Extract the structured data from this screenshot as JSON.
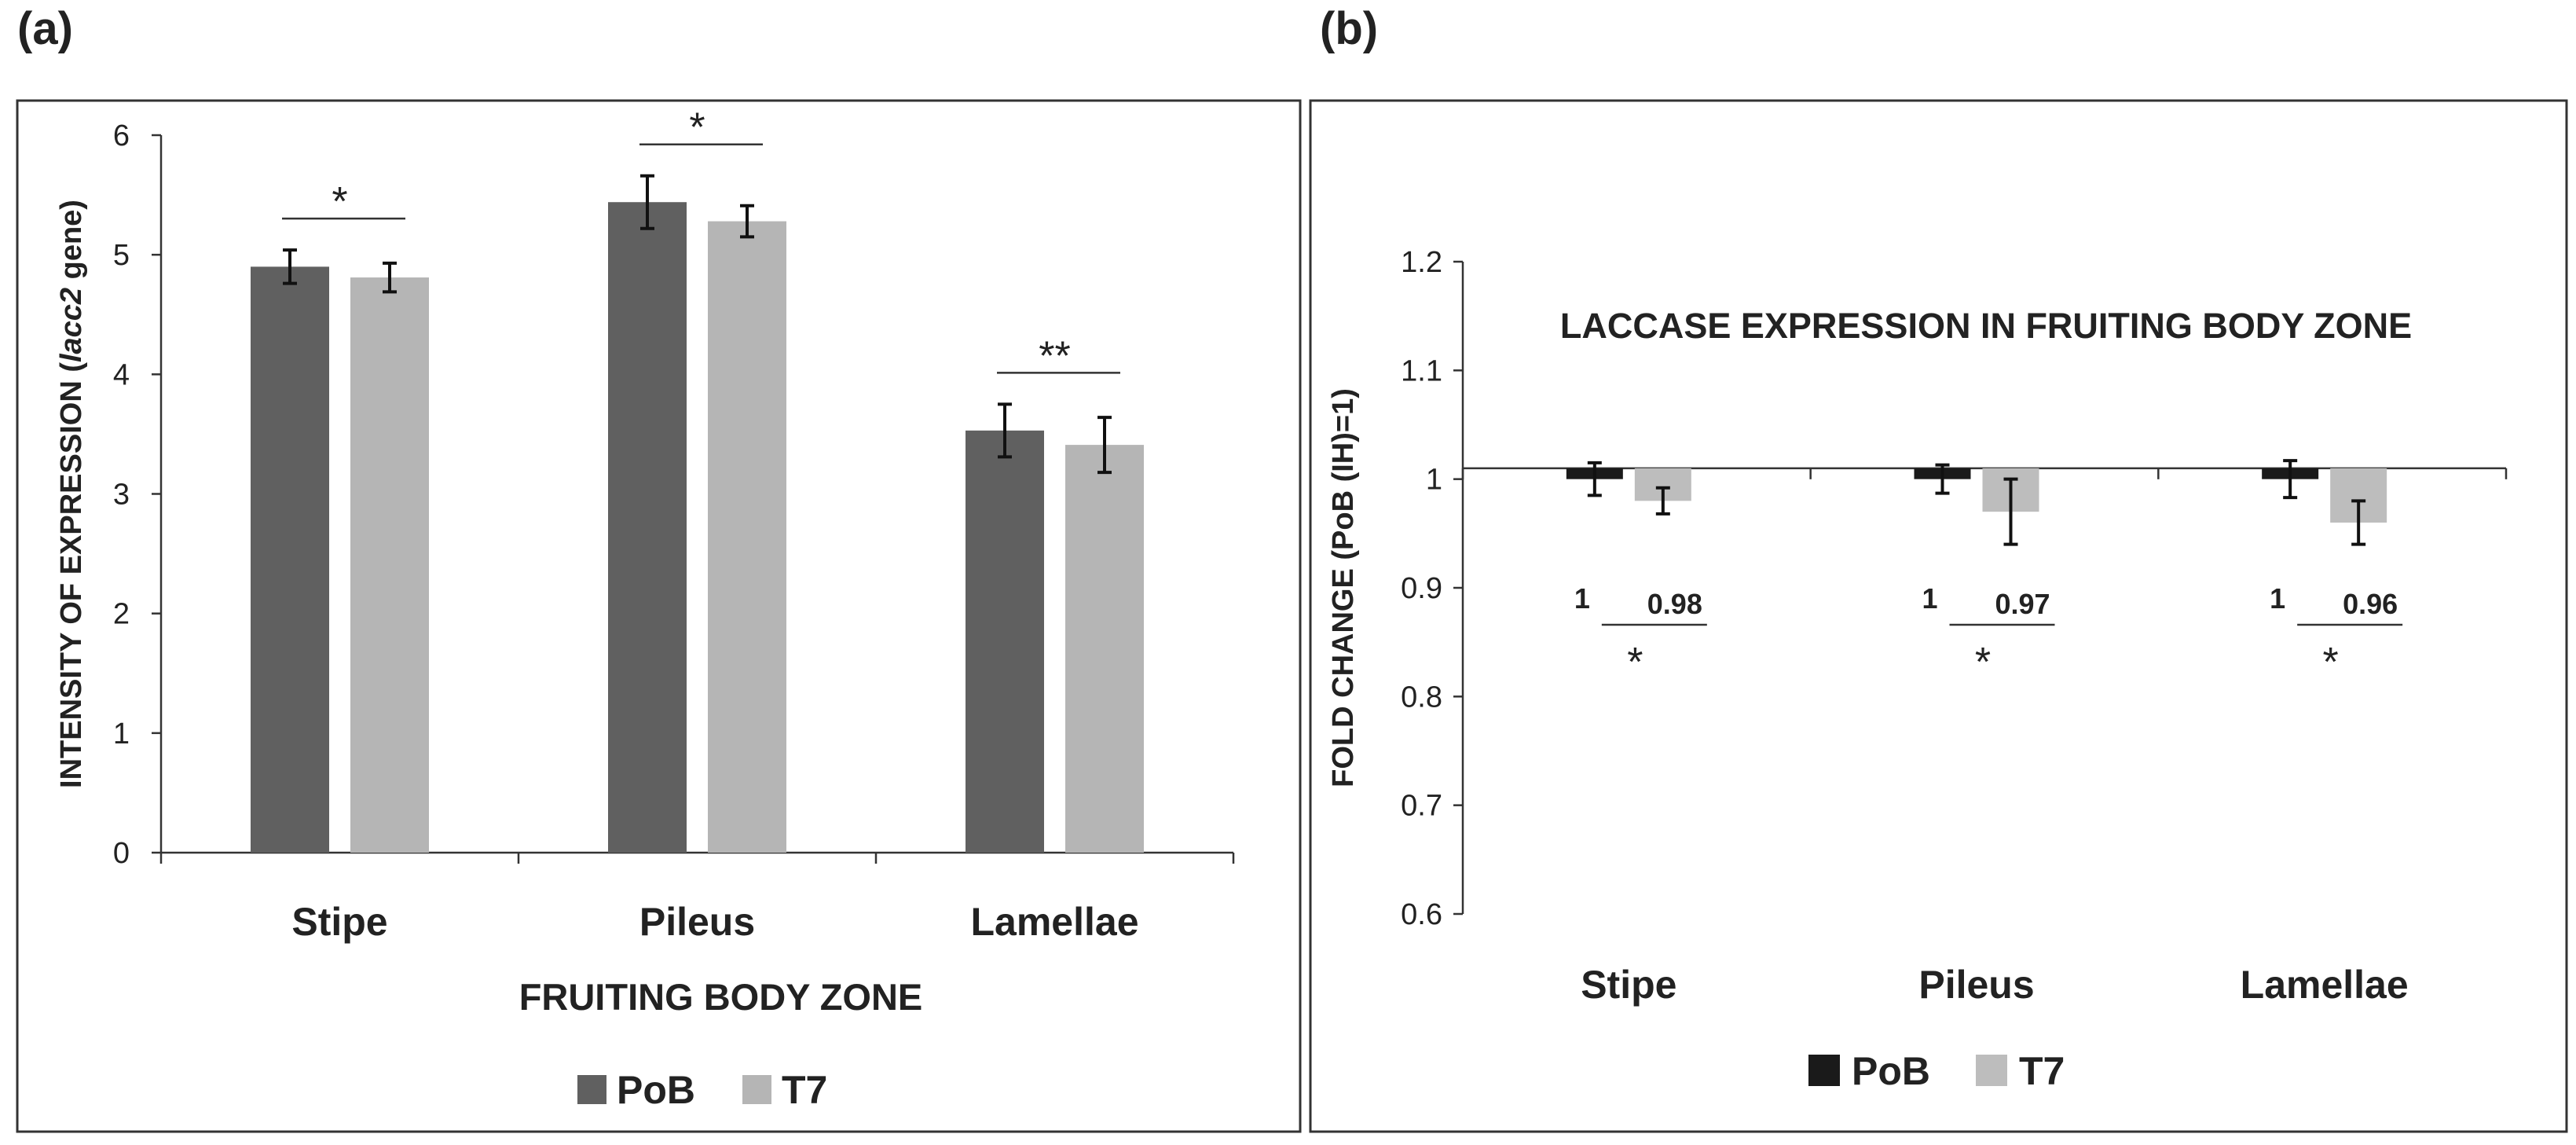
{
  "panels": {
    "a": {
      "label": "(a)"
    },
    "b": {
      "label": "(b)"
    }
  },
  "chart_data": [
    {
      "panel": "(a)",
      "type": "bar",
      "title": "",
      "xlabel": "FRUITING BODY ZONE",
      "ylabel_parts": [
        "INTENSITY OF  EXPRESSION (",
        "lacc2",
        " gene)"
      ],
      "ylim": [
        0,
        6
      ],
      "yticks": [
        0,
        1,
        2,
        3,
        4,
        5,
        6
      ],
      "categories": [
        "Stipe",
        "Pileus",
        "Lamellae"
      ],
      "series": [
        {
          "name": "PoB",
          "color": "#606060",
          "values": [
            4.9,
            5.44,
            3.53
          ],
          "errors": [
            0.14,
            0.22,
            0.22
          ]
        },
        {
          "name": "T7",
          "color": "#b5b5b5",
          "values": [
            4.81,
            5.28,
            3.41
          ],
          "errors": [
            0.12,
            0.13,
            0.23
          ]
        }
      ],
      "significance": [
        "*",
        "*",
        "**"
      ],
      "legend": [
        "PoB",
        "T7"
      ]
    },
    {
      "panel": "(b)",
      "type": "bar",
      "title": "LACCASE EXPRESSION IN FRUITING BODY ZONE",
      "xlabel": "",
      "ylabel": "FOLD CHANGE (PoB (IH)=1)",
      "ylim": [
        0.6,
        1.2
      ],
      "yticks": [
        "0.6",
        "0.7",
        "0.8",
        "0.9",
        "1",
        "1.1",
        "1.2"
      ],
      "baseline": 1.01,
      "categories": [
        "Stipe",
        "Pileus",
        "Lamellae"
      ],
      "series": [
        {
          "name": "PoB",
          "color": "#1a1a1a",
          "values": [
            1,
            1,
            1
          ],
          "value_labels": [
            "1",
            "1",
            "1"
          ],
          "errors": [
            0.015,
            0.013,
            0.017
          ]
        },
        {
          "name": "T7",
          "color": "#bdbdbd",
          "values": [
            0.98,
            0.97,
            0.96
          ],
          "value_labels": [
            "0.98",
            "0.97",
            "0.96"
          ],
          "errors": [
            0.012,
            0.03,
            0.02
          ]
        }
      ],
      "significance": [
        "*",
        "*",
        "*"
      ],
      "legend": [
        "PoB",
        "T7"
      ]
    }
  ]
}
